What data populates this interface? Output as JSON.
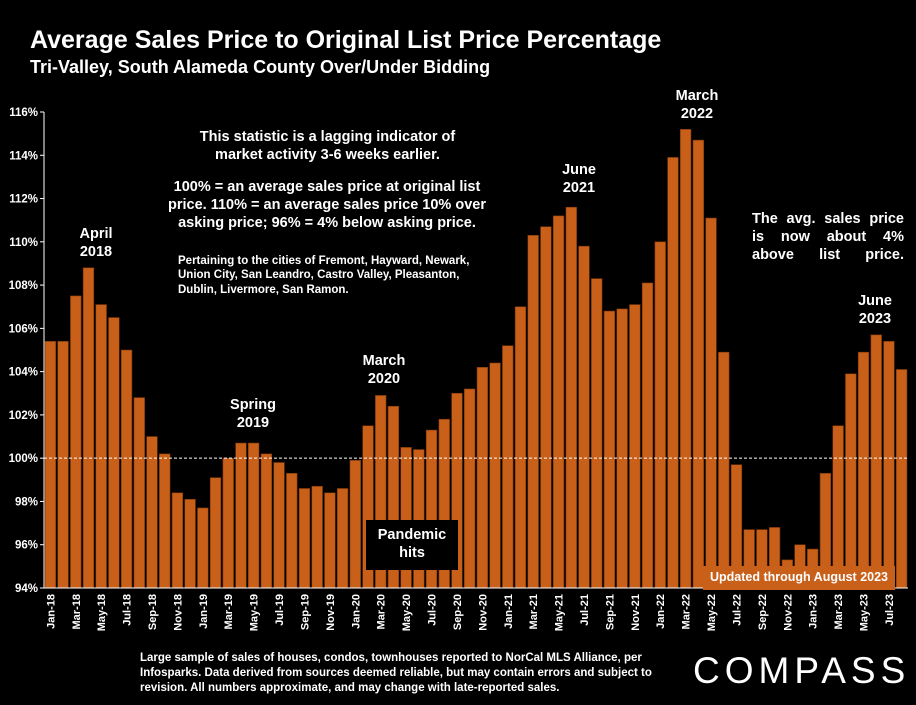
{
  "header": {
    "title": "Average Sales Price to Original List Price Percentage",
    "subtitle": "Tri-Valley, South Alameda County Over/Under Bidding"
  },
  "annotations": {
    "lagging": "This statistic is a lagging indicator of market activity 3-6 weeks earlier.",
    "explain": "100% = an average sales price at original list price. 110% = an average sales price 10% over asking price; 96% = 4% below asking price.",
    "cities": "Pertaining to the cities of Fremont, Hayward, Newark, Union City, San Leandro, Castro Valley, Pleasanton, Dublin, Livermore, San Ramon.",
    "current": "The avg. sales price is now about 4% above list price.",
    "april2018": "April 2018",
    "spring2019": "Spring 2019",
    "march2020": "March 2020",
    "pandemic": "Pandemic hits",
    "june2021": "June 2021",
    "march2022": "March 2022",
    "june2023": "June 2023",
    "updated": "Updated through August 2023"
  },
  "footer": {
    "note": "Large sample of sales of houses, condos, townhouses reported to NorCal MLS Alliance, per Infosparks. Data derived from sources deemed reliable, but may contain errors and subject to revision. All numbers approximate, and may change with late-reported sales.",
    "brand": "COMPASS"
  },
  "colors": {
    "bar": "#C8601A",
    "bar_edge": "#7a3405",
    "reference_line": "#ffffff"
  },
  "chart_data": {
    "type": "bar",
    "ylim": [
      94,
      116
    ],
    "y_ticks": [
      "94%",
      "96%",
      "98%",
      "100%",
      "102%",
      "104%",
      "106%",
      "108%",
      "110%",
      "112%",
      "114%",
      "116%"
    ],
    "reference_line": 100,
    "grid": false,
    "x_tick_labels": [
      "Jan-18",
      "Mar-18",
      "May-18",
      "Jul-18",
      "Sep-18",
      "Nov-18",
      "Jan-19",
      "Mar-19",
      "May-19",
      "Jul-19",
      "Sep-19",
      "Nov-19",
      "Jan-20",
      "Mar-20",
      "May-20",
      "Jul-20",
      "Sep-20",
      "Nov-20",
      "Jan-21",
      "Mar-21",
      "May-21",
      "Jul-21",
      "Sep-21",
      "Nov-21",
      "Jan-22",
      "Mar-22",
      "May-22",
      "Jul-22",
      "Sep-22",
      "Nov-22",
      "Jan-23",
      "Mar-23",
      "May-23",
      "Jul-23"
    ],
    "categories": [
      "Jan-18",
      "Feb-18",
      "Mar-18",
      "Apr-18",
      "May-18",
      "Jun-18",
      "Jul-18",
      "Aug-18",
      "Sep-18",
      "Oct-18",
      "Nov-18",
      "Dec-18",
      "Jan-19",
      "Feb-19",
      "Mar-19",
      "Apr-19",
      "May-19",
      "Jun-19",
      "Jul-19",
      "Aug-19",
      "Sep-19",
      "Oct-19",
      "Nov-19",
      "Dec-19",
      "Jan-20",
      "Feb-20",
      "Mar-20",
      "Apr-20",
      "May-20",
      "Jun-20",
      "Jul-20",
      "Aug-20",
      "Sep-20",
      "Oct-20",
      "Nov-20",
      "Dec-20",
      "Jan-21",
      "Feb-21",
      "Mar-21",
      "Apr-21",
      "May-21",
      "Jun-21",
      "Jul-21",
      "Aug-21",
      "Sep-21",
      "Oct-21",
      "Nov-21",
      "Dec-21",
      "Jan-22",
      "Feb-22",
      "Mar-22",
      "Apr-22",
      "May-22",
      "Jun-22",
      "Jul-22",
      "Aug-22",
      "Sep-22",
      "Oct-22",
      "Nov-22",
      "Dec-22",
      "Jan-23",
      "Feb-23",
      "Mar-23",
      "Apr-23",
      "May-23",
      "Jun-23",
      "Jul-23",
      "Aug-23"
    ],
    "values": [
      105.4,
      105.4,
      107.5,
      108.8,
      107.1,
      106.5,
      105.0,
      102.8,
      101.0,
      100.2,
      98.4,
      98.1,
      97.7,
      99.1,
      100.0,
      100.7,
      100.7,
      100.2,
      99.8,
      99.3,
      98.6,
      98.7,
      98.4,
      98.6,
      99.9,
      101.5,
      102.9,
      102.4,
      100.5,
      100.4,
      101.3,
      101.8,
      103.0,
      103.2,
      104.2,
      104.4,
      105.2,
      107.0,
      110.3,
      110.7,
      111.2,
      111.6,
      109.8,
      108.3,
      106.8,
      106.9,
      107.1,
      108.1,
      110.0,
      113.9,
      115.2,
      114.7,
      111.1,
      104.9,
      99.7,
      96.7,
      96.7,
      96.8,
      95.3,
      96.0,
      95.8,
      99.3,
      101.5,
      103.9,
      104.9,
      105.7,
      105.4,
      104.1
    ]
  }
}
